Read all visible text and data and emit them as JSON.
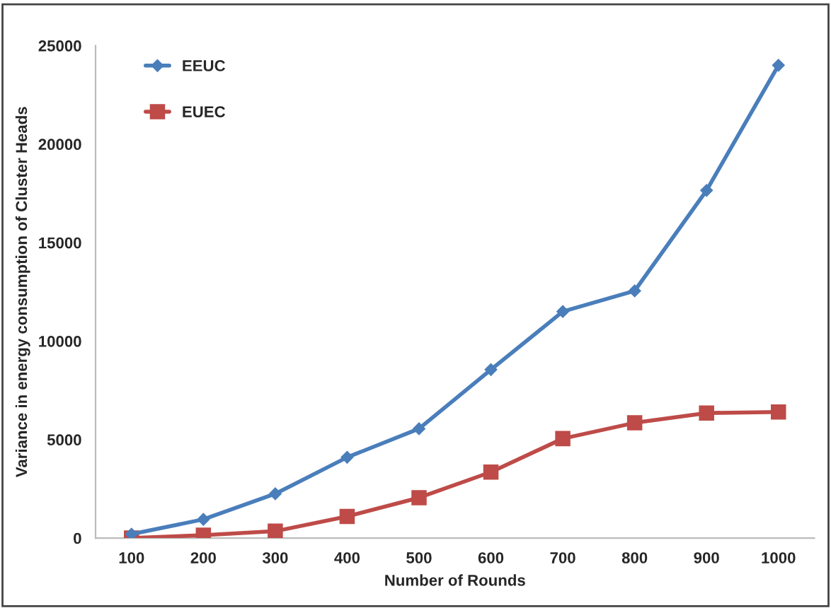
{
  "chart_data": {
    "type": "line",
    "xlabel": "Number of Rounds",
    "ylabel": "Variance in energy consumption of Cluster Heads",
    "categories": [
      "100",
      "200",
      "300",
      "400",
      "500",
      "600",
      "700",
      "800",
      "900",
      "1000"
    ],
    "series": [
      {
        "name": "EEUC",
        "color": "#4a7ebb",
        "marker": "diamond",
        "values": [
          200,
          950,
          2250,
          4100,
          5550,
          8550,
          11500,
          12550,
          17650,
          24000
        ]
      },
      {
        "name": "EUEC",
        "color": "#be4b48",
        "marker": "square",
        "values": [
          0,
          150,
          350,
          1100,
          2050,
          3350,
          5050,
          5850,
          6350,
          6400
        ]
      }
    ],
    "ylim": [
      0,
      25000
    ],
    "yticks": [
      0,
      5000,
      10000,
      15000,
      20000,
      25000
    ],
    "grid": false,
    "legend": "top left"
  }
}
